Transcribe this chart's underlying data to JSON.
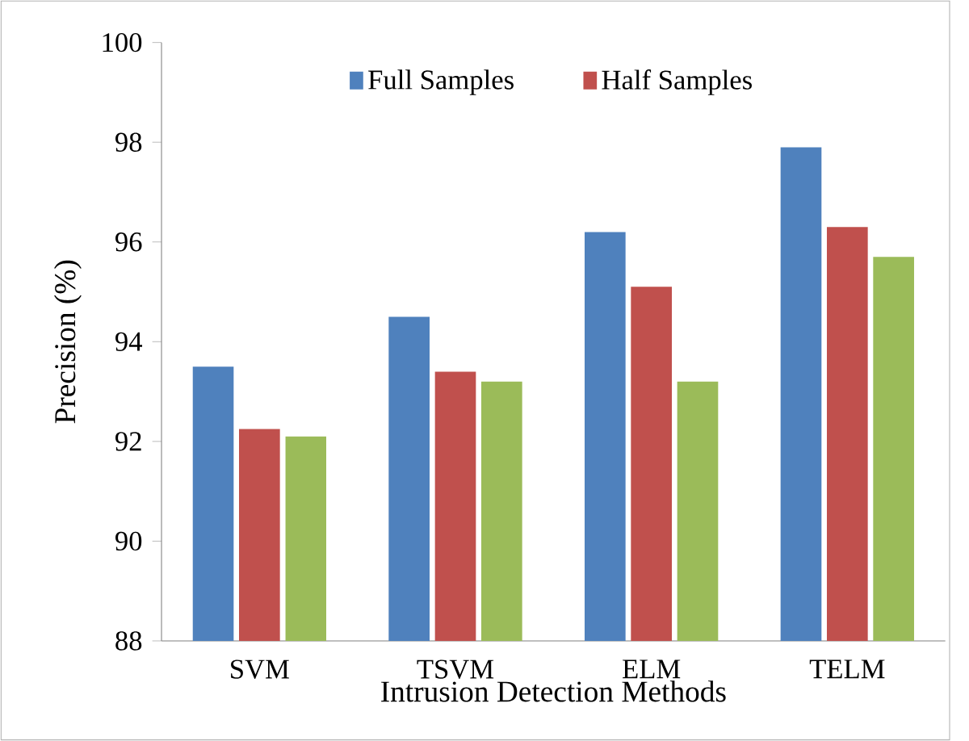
{
  "chart_data": {
    "type": "bar",
    "xlabel": "Intrusion Detection Methods",
    "ylabel": "Precision (%)",
    "categories": [
      "SVM",
      "TSVM",
      "ELM",
      "TELM"
    ],
    "series": [
      {
        "name": "Full Samples",
        "color": "#4f81bd",
        "values": [
          93.5,
          94.5,
          96.2,
          97.9
        ]
      },
      {
        "name": "Half Samples",
        "color": "#c0504d",
        "values": [
          92.25,
          93.4,
          95.1,
          96.3
        ]
      },
      {
        "color": "#9bbb59",
        "values": [
          92.1,
          93.2,
          93.2,
          95.7
        ]
      }
    ],
    "ylim": [
      88,
      100
    ],
    "yticks": [
      88,
      90,
      92,
      94,
      96,
      98,
      100
    ],
    "legend": "top",
    "grid": false
  }
}
